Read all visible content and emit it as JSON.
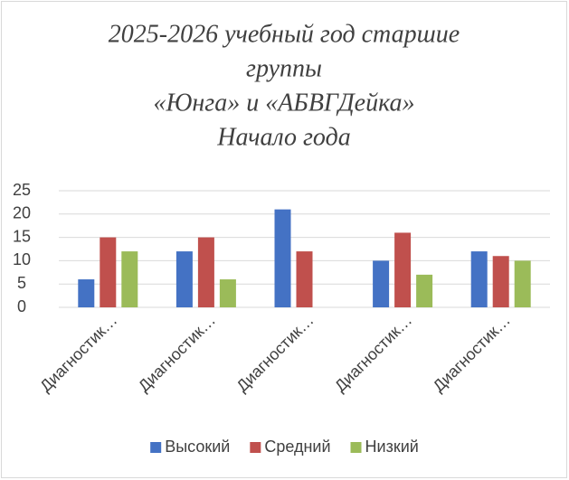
{
  "chart_data": {
    "type": "bar",
    "title": [
      "2025-2026 учебный год старшие",
      "группы",
      "«Юнга» и «АБВГДейка»",
      "Начало года"
    ],
    "categories": [
      "Диагностик…",
      "Диагностик…",
      "Диагностик…",
      "Диагностик…",
      "Диагностик…"
    ],
    "series": [
      {
        "name": "Высокий",
        "color": "#4472c4",
        "values": [
          6,
          12,
          21,
          10,
          12
        ]
      },
      {
        "name": "Средний",
        "color": "#c0504d",
        "values": [
          15,
          15,
          12,
          16,
          11
        ]
      },
      {
        "name": "Низкий",
        "color": "#9bbb59",
        "values": [
          12,
          6,
          0,
          7,
          10
        ]
      }
    ],
    "ylim": [
      0,
      25
    ],
    "yticks": [
      0,
      5,
      10,
      15,
      20,
      25
    ],
    "grid": true,
    "legend": "bottom"
  }
}
